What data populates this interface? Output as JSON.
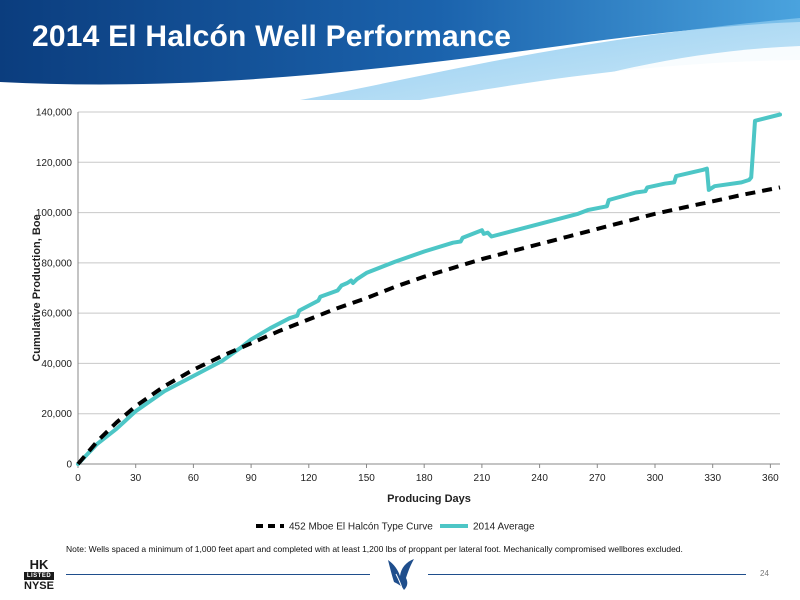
{
  "slide": {
    "title": "2014 El Halcón Well Performance",
    "note": "Note: Wells spaced a minimum of 1,000 feet apart and completed with at least 1,200 lbs of proppant per lateral foot.  Mechanically compromised wellbores excluded.",
    "page_number": "24",
    "logo": {
      "top": "HK",
      "middle": "LISTED",
      "bottom": "NYSE"
    },
    "colors": {
      "banner_dark": "#0b3d7e",
      "banner_mid": "#1e6fb8",
      "banner_light": "#4aa3de"
    }
  },
  "chart_data": {
    "type": "line",
    "title": "",
    "xlabel": "Producing Days",
    "ylabel": "Cumulative Production, Boe",
    "xlim": [
      0,
      365
    ],
    "ylim": [
      0,
      140000
    ],
    "x_ticks": [
      0,
      30,
      60,
      90,
      120,
      150,
      180,
      210,
      240,
      270,
      300,
      330,
      360
    ],
    "y_ticks": [
      0,
      20000,
      40000,
      60000,
      80000,
      100000,
      120000,
      140000
    ],
    "y_tick_labels": [
      "0",
      "20,000",
      "40,000",
      "60,000",
      "80,000",
      "100,000",
      "120,000",
      "140,000"
    ],
    "grid": "horizontal",
    "legend_position": "bottom",
    "series": [
      {
        "name": "452 Mboe El Halcón Type Curve",
        "color": "#000000",
        "style": "dashed",
        "x": [
          0,
          10,
          20,
          30,
          45,
          60,
          75,
          90,
          105,
          120,
          135,
          150,
          165,
          180,
          195,
          210,
          225,
          240,
          255,
          270,
          285,
          300,
          315,
          330,
          345,
          365
        ],
        "y": [
          0,
          9000,
          16500,
          23000,
          31000,
          37500,
          43000,
          48000,
          53000,
          57500,
          62000,
          66000,
          70500,
          74500,
          78000,
          81500,
          84500,
          87500,
          90500,
          93500,
          96500,
          99500,
          102000,
          104500,
          107000,
          110000
        ]
      },
      {
        "name": "2014 Average",
        "color": "#4dc6c6",
        "style": "solid",
        "x": [
          0,
          10,
          20,
          30,
          45,
          60,
          75,
          85,
          90,
          100,
          110,
          114,
          115,
          120,
          125,
          126,
          135,
          137,
          140,
          142,
          143,
          145,
          150,
          165,
          180,
          195,
          199,
          200,
          210,
          211,
          213,
          215,
          240,
          260,
          265,
          275,
          276,
          290,
          295,
          296,
          305,
          310,
          311,
          325,
          327,
          328,
          331,
          345,
          349,
          350,
          351,
          352,
          365
        ],
        "y": [
          0,
          8000,
          14000,
          21000,
          29000,
          35000,
          41000,
          46500,
          49500,
          54000,
          58000,
          59000,
          61000,
          63000,
          65000,
          66500,
          69000,
          71000,
          72000,
          73000,
          72000,
          73500,
          76000,
          80500,
          84500,
          88000,
          88500,
          90000,
          93000,
          91500,
          92000,
          90500,
          95500,
          99500,
          101000,
          102500,
          105000,
          108000,
          108500,
          110000,
          111500,
          112000,
          114500,
          117000,
          117500,
          109000,
          110500,
          112000,
          113000,
          114000,
          125000,
          136500,
          139000
        ]
      }
    ]
  }
}
